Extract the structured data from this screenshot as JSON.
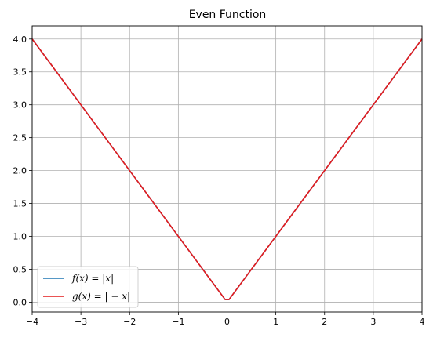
{
  "chart_data": {
    "type": "line",
    "title": "Even Function",
    "xlabel": "",
    "ylabel": "",
    "xlim": [
      -4,
      4
    ],
    "ylim": [
      -0.15,
      4.2
    ],
    "xticks": [
      -4,
      -3,
      -2,
      -1,
      0,
      1,
      2,
      3,
      4
    ],
    "xtick_labels": [
      "−4",
      "−3",
      "−2",
      "−1",
      "0",
      "1",
      "2",
      "3",
      "4"
    ],
    "yticks": [
      0.0,
      0.5,
      1.0,
      1.5,
      2.0,
      2.5,
      3.0,
      3.5,
      4.0
    ],
    "ytick_labels": [
      "0.0",
      "0.5",
      "1.0",
      "1.5",
      "2.0",
      "2.5",
      "3.0",
      "3.5",
      "4.0"
    ],
    "grid": true,
    "legend_position": "bottom-left",
    "series": [
      {
        "name": "f(x) = |x|",
        "color": "#1f77b4",
        "x": [
          -4,
          -0.04,
          0.04,
          4
        ],
        "y": [
          4,
          0.04,
          0.04,
          4
        ]
      },
      {
        "name": "g(x) = | − x|",
        "color": "#e41a1c",
        "x": [
          -4,
          -0.04,
          0.04,
          4
        ],
        "y": [
          4,
          0.04,
          0.04,
          4
        ]
      }
    ]
  }
}
